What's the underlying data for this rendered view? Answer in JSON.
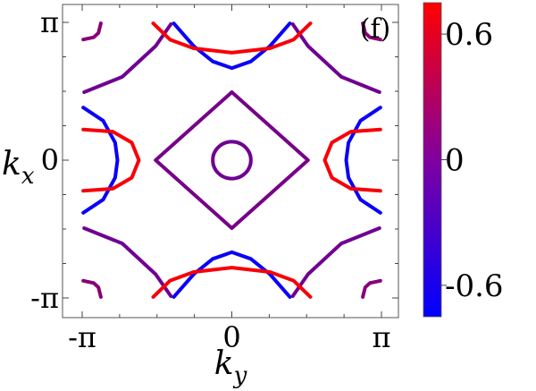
{
  "chart_data": {
    "type": "line",
    "panel_label": "(f)",
    "xlabel": "k",
    "xlabel_sub": "y",
    "ylabel": "k",
    "ylabel_sub": "x",
    "xlim": [
      -3.14159,
      3.14159
    ],
    "ylim": [
      -3.14159,
      3.14159
    ],
    "x_ticks": [
      {
        "value": -3.14159,
        "label": "-π"
      },
      {
        "value": 0,
        "label": "0"
      },
      {
        "value": 3.14159,
        "label": "π"
      }
    ],
    "y_ticks": [
      {
        "value": 3.14159,
        "label": "π"
      },
      {
        "value": 0,
        "label": "0"
      },
      {
        "value": -3.14159,
        "label": "-π"
      }
    ],
    "colorbar": {
      "range": [
        -0.75,
        0.75
      ],
      "colors": [
        "#0000ff",
        "#ff0000"
      ],
      "ticks": [
        {
          "value": 0.6,
          "label": "0.6"
        },
        {
          "value": 0,
          "label": "0"
        },
        {
          "value": -0.6,
          "label": "-0.6"
        }
      ]
    },
    "grid": false,
    "curves": [
      {
        "name": "inner-circle",
        "value": -0.1,
        "kind": "ellipse",
        "cx": 0,
        "cy": 0,
        "rx": 0.4,
        "ry": 0.42
      },
      {
        "name": "diamond",
        "value": -0.05,
        "kind": "poly",
        "closed": true,
        "points": [
          [
            0,
            1.55
          ],
          [
            1.6,
            0
          ],
          [
            0,
            -1.55
          ],
          [
            -1.6,
            0
          ]
        ]
      },
      {
        "name": "outer-pocket-top",
        "value": -0.1,
        "kind": "poly",
        "points": [
          [
            -3.1,
            1.55
          ],
          [
            -2.3,
            1.9
          ],
          [
            -1.6,
            2.6
          ],
          [
            -1.28,
            3.1
          ]
        ]
      },
      {
        "name": "outer-pocket-top-r",
        "value": -0.1,
        "kind": "poly",
        "points": [
          [
            3.1,
            1.55
          ],
          [
            2.3,
            1.9
          ],
          [
            1.6,
            2.6
          ],
          [
            1.28,
            3.1
          ]
        ]
      },
      {
        "name": "outer-pocket-bot",
        "value": -0.1,
        "kind": "poly",
        "points": [
          [
            -3.1,
            -1.55
          ],
          [
            -2.3,
            -1.9
          ],
          [
            -1.6,
            -2.6
          ],
          [
            -1.28,
            -3.1
          ]
        ]
      },
      {
        "name": "outer-pocket-bot-r",
        "value": -0.1,
        "kind": "poly",
        "points": [
          [
            3.1,
            -1.55
          ],
          [
            2.3,
            -1.9
          ],
          [
            1.6,
            -2.6
          ],
          [
            1.28,
            -3.1
          ]
        ]
      },
      {
        "name": "left-mid-blue",
        "value": -0.7,
        "kind": "poly",
        "points": [
          [
            -3.12,
            1.2
          ],
          [
            -2.7,
            0.9
          ],
          [
            -2.45,
            0.4
          ],
          [
            -2.4,
            0
          ],
          [
            -2.45,
            -0.4
          ],
          [
            -2.7,
            -0.9
          ],
          [
            -3.12,
            -1.2
          ]
        ]
      },
      {
        "name": "right-mid-blue",
        "value": -0.7,
        "kind": "poly",
        "points": [
          [
            3.12,
            1.2
          ],
          [
            2.7,
            0.9
          ],
          [
            2.45,
            0.4
          ],
          [
            2.4,
            0
          ],
          [
            2.45,
            -0.4
          ],
          [
            2.7,
            -0.9
          ],
          [
            3.12,
            -1.2
          ]
        ]
      },
      {
        "name": "left-mid-red",
        "value": 0.7,
        "kind": "poly",
        "points": [
          [
            -3.12,
            0.7
          ],
          [
            -2.5,
            0.65
          ],
          [
            -2.1,
            0.4
          ],
          [
            -1.95,
            0
          ],
          [
            -2.1,
            -0.4
          ],
          [
            -2.5,
            -0.65
          ],
          [
            -3.12,
            -0.7
          ]
        ]
      },
      {
        "name": "right-mid-red",
        "value": 0.7,
        "kind": "poly",
        "points": [
          [
            3.12,
            0.7
          ],
          [
            2.5,
            0.65
          ],
          [
            2.1,
            0.4
          ],
          [
            1.95,
            0
          ],
          [
            2.1,
            -0.4
          ],
          [
            2.5,
            -0.65
          ],
          [
            3.12,
            -0.7
          ]
        ]
      },
      {
        "name": "top-blue",
        "value": -0.7,
        "kind": "poly",
        "points": [
          [
            -1.22,
            3.12
          ],
          [
            -0.8,
            2.6
          ],
          [
            -0.4,
            2.25
          ],
          [
            0,
            2.1
          ],
          [
            0.4,
            2.25
          ],
          [
            0.8,
            2.6
          ],
          [
            1.22,
            3.12
          ]
        ]
      },
      {
        "name": "top-red",
        "value": 0.7,
        "kind": "poly",
        "points": [
          [
            -1.65,
            3.12
          ],
          [
            -1.3,
            2.75
          ],
          [
            -0.8,
            2.55
          ],
          [
            0,
            2.45
          ],
          [
            0.8,
            2.55
          ],
          [
            1.3,
            2.75
          ],
          [
            1.65,
            3.12
          ]
        ]
      },
      {
        "name": "bottom-blue",
        "value": -0.7,
        "kind": "poly",
        "points": [
          [
            -1.22,
            -3.12
          ],
          [
            -0.8,
            -2.6
          ],
          [
            -0.4,
            -2.25
          ],
          [
            0,
            -2.1
          ],
          [
            0.4,
            -2.25
          ],
          [
            0.8,
            -2.6
          ],
          [
            1.22,
            -3.12
          ]
        ]
      },
      {
        "name": "bottom-red",
        "value": 0.7,
        "kind": "poly",
        "points": [
          [
            -1.65,
            -3.12
          ],
          [
            -1.3,
            -2.75
          ],
          [
            -0.8,
            -2.55
          ],
          [
            0,
            -2.45
          ],
          [
            0.8,
            -2.55
          ],
          [
            1.3,
            -2.75
          ],
          [
            1.65,
            -3.12
          ]
        ]
      },
      {
        "name": "corner-tl",
        "value": 0.05,
        "kind": "poly",
        "points": [
          [
            -3.12,
            2.75
          ],
          [
            -2.9,
            2.8
          ],
          [
            -2.8,
            2.9
          ],
          [
            -2.75,
            3.12
          ]
        ]
      },
      {
        "name": "corner-tr",
        "value": 0.05,
        "kind": "poly",
        "points": [
          [
            3.12,
            2.75
          ],
          [
            2.9,
            2.8
          ],
          [
            2.8,
            2.9
          ],
          [
            2.75,
            3.12
          ]
        ]
      },
      {
        "name": "corner-bl",
        "value": 0.05,
        "kind": "poly",
        "points": [
          [
            -3.12,
            -2.75
          ],
          [
            -2.9,
            -2.8
          ],
          [
            -2.8,
            -2.9
          ],
          [
            -2.75,
            -3.12
          ]
        ]
      },
      {
        "name": "corner-br",
        "value": 0.05,
        "kind": "poly",
        "points": [
          [
            3.12,
            -2.75
          ],
          [
            2.9,
            -2.8
          ],
          [
            2.8,
            -2.9
          ],
          [
            2.75,
            -3.12
          ]
        ]
      }
    ]
  }
}
